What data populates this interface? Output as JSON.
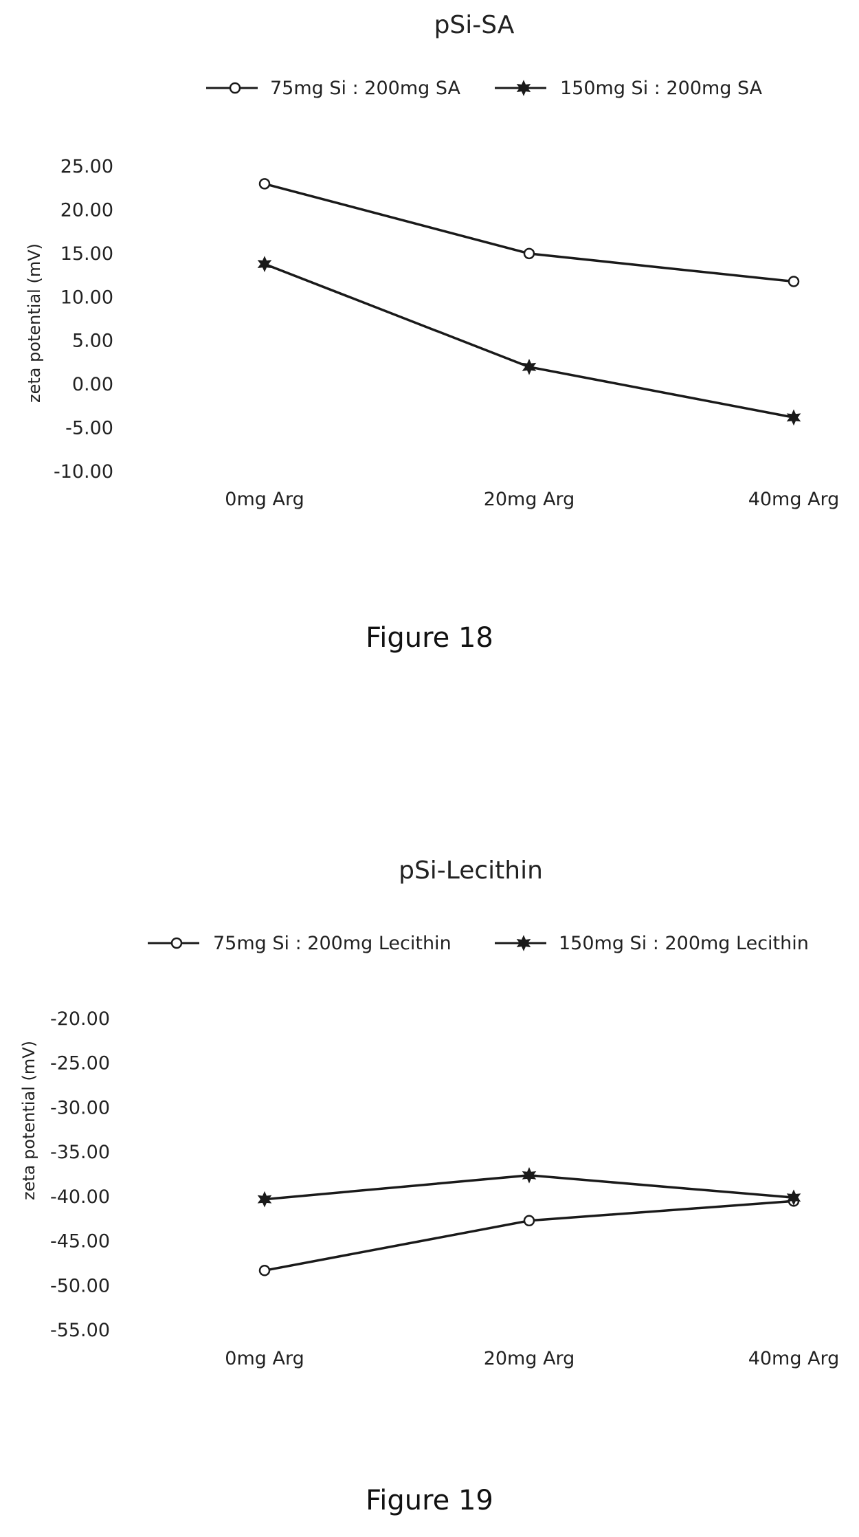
{
  "figures": [
    {
      "caption": "Figure 18"
    },
    {
      "caption": "Figure 19"
    }
  ],
  "colors": {
    "line": "#1a1a1a",
    "text": "#222222"
  },
  "chart_data": [
    {
      "type": "line",
      "title": "pSi-SA",
      "categories": [
        "0mg Arg",
        "20mg Arg",
        "40mg Arg"
      ],
      "ylabel": "zeta potential (mV)",
      "xlabel": "",
      "ylim": [
        -10,
        25
      ],
      "yticks": [
        "25.00",
        "20.00",
        "15.00",
        "10.00",
        "5.00",
        "0.00",
        "-5.00",
        "-10.00"
      ],
      "grid": false,
      "legend_position": "top",
      "series": [
        {
          "name": "75mg Si : 200mg SA",
          "marker": "open-circle",
          "values": [
            23.0,
            15.0,
            11.8
          ]
        },
        {
          "name": "150mg Si : 200mg SA",
          "marker": "filled-star",
          "values": [
            13.8,
            2.0,
            -3.8
          ]
        }
      ]
    },
    {
      "type": "line",
      "title": "pSi-Lecithin",
      "categories": [
        "0mg Arg",
        "20mg Arg",
        "40mg Arg"
      ],
      "ylabel": "zeta potential (mV)",
      "xlabel": "",
      "ylim": [
        -55,
        -20
      ],
      "yticks": [
        "-20.00",
        "-25.00",
        "-30.00",
        "-35.00",
        "-40.00",
        "-45.00",
        "-50.00",
        "-55.00"
      ],
      "grid": false,
      "legend_position": "top",
      "series": [
        {
          "name": "75mg Si : 200mg Lecithin",
          "marker": "open-circle",
          "values": [
            -48.3,
            -42.7,
            -40.5
          ]
        },
        {
          "name": "150mg Si : 200mg Lecithin",
          "marker": "filled-star",
          "values": [
            -40.3,
            -37.6,
            -40.1
          ]
        }
      ]
    }
  ]
}
